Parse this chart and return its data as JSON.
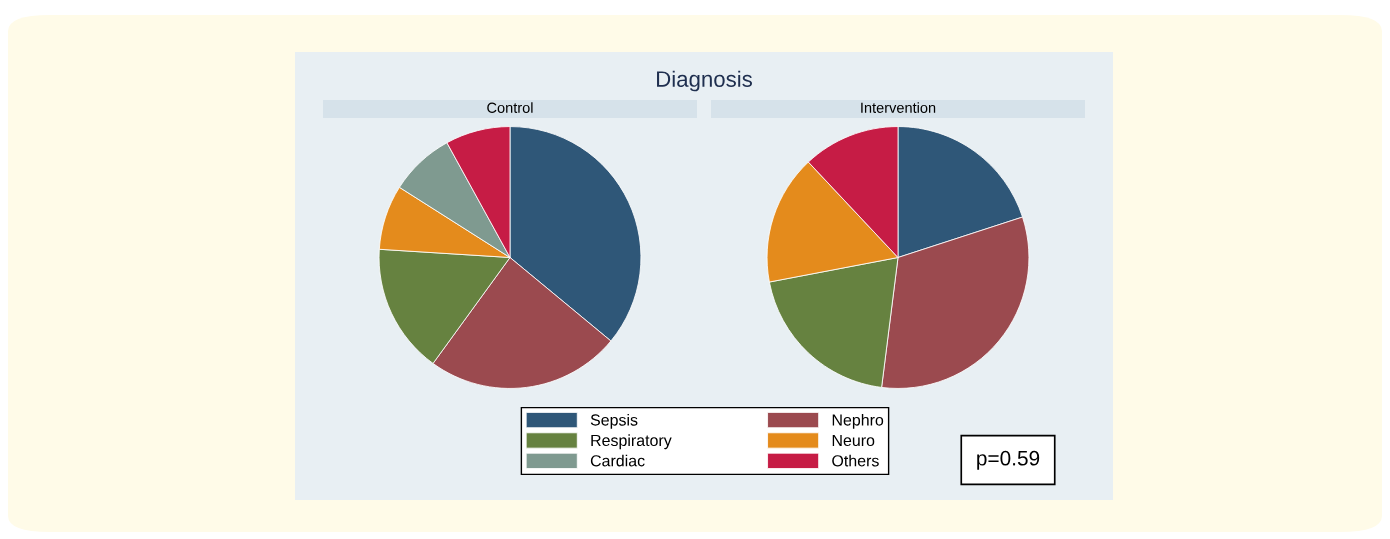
{
  "chart_data": [
    {
      "type": "pie",
      "title": "Diagnosis",
      "subtitle": "Control",
      "categories": [
        "Sepsis",
        "Nephro",
        "Respiratory",
        "Neuro",
        "Cardiac",
        "Others"
      ],
      "values": [
        36,
        24,
        16,
        8,
        8,
        8
      ],
      "colors": [
        "#2f5778",
        "#9b4a4f",
        "#668240",
        "#e48b1c",
        "#7f9a90",
        "#c61c45"
      ],
      "legend": "bottom"
    },
    {
      "type": "pie",
      "subtitle": "Intervention",
      "categories": [
        null,
        null,
        null,
        null,
        null
      ],
      "values": [
        20,
        32,
        20,
        16,
        12
      ],
      "colors": [
        "#2f5778",
        "#9b4a4f",
        "#668240",
        "#e48b1c",
        "#c61c45"
      ],
      "annotations": [
        "p=0.59"
      ]
    }
  ]
}
